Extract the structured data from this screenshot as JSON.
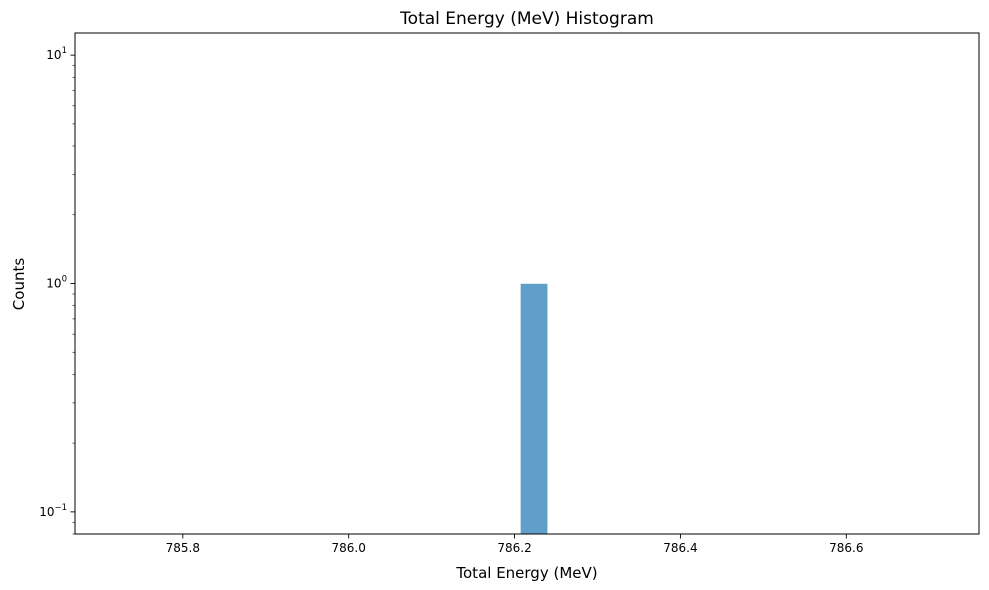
{
  "chart_data": {
    "type": "bar",
    "title": "Total Energy (MeV) Histogram",
    "xlabel": "Total Energy (MeV)",
    "ylabel": "Counts",
    "y_scale": "log",
    "xlim": [
      785.67,
      786.76
    ],
    "ylim": [
      0.08,
      12.5
    ],
    "x_ticks": [
      785.8,
      786.0,
      786.2,
      786.4,
      786.6
    ],
    "x_tick_labels": [
      "785.8",
      "786.0",
      "786.2",
      "786.4",
      "786.6"
    ],
    "y_ticks": [
      {
        "value": 0.1,
        "base": "10",
        "exp": "−1"
      },
      {
        "value": 1,
        "base": "10",
        "exp": "0"
      },
      {
        "value": 10,
        "base": "10",
        "exp": "1"
      }
    ],
    "bins": [
      {
        "x_start": 786.207,
        "x_end": 786.24,
        "count": 1
      }
    ],
    "bar_color": "#619fcb",
    "grid": false,
    "legend": "none"
  }
}
